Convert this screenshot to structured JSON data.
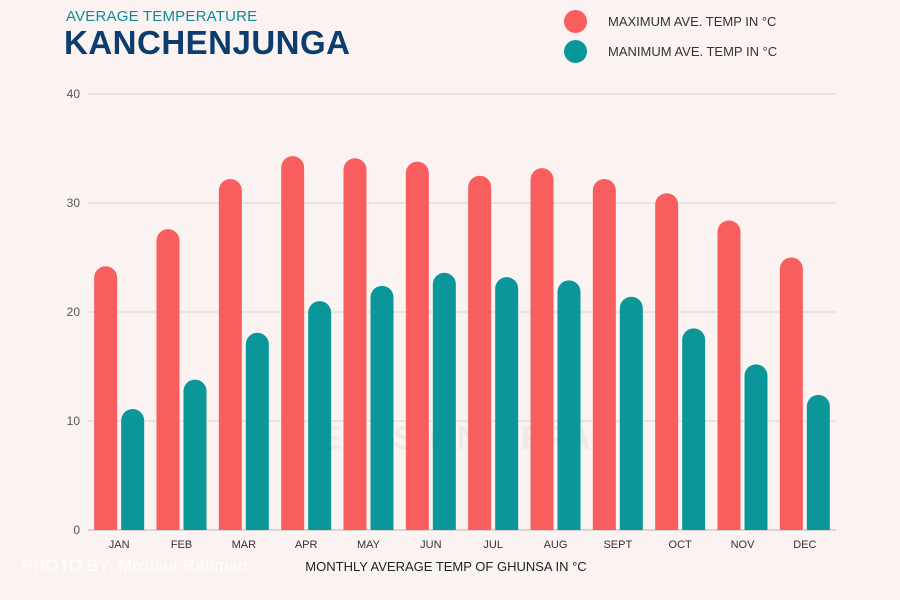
{
  "header": {
    "subtitle": "AVERAGE TEMPERATURE",
    "title": "KANCHENJUNGA"
  },
  "watermark": "EYES ON NEPAL",
  "credit": "PHOTO BY: Moshiur Rahman",
  "colors": {
    "max": "#f95e5f",
    "min": "#0b979a",
    "grid": "#d9d6d5",
    "axis": "#555555"
  },
  "chart_data": {
    "type": "bar",
    "categories": [
      "JAN",
      "FEB",
      "MAR",
      "APR",
      "MAY",
      "JUN",
      "JUL",
      "AUG",
      "SEPT",
      "OCT",
      "NOV",
      "DEC"
    ],
    "series": [
      {
        "name": "MAXIMUM AVE.  TEMP IN °C",
        "values": [
          24.2,
          27.6,
          32.2,
          34.3,
          34.1,
          33.8,
          32.5,
          33.2,
          32.2,
          30.9,
          28.4,
          25
        ]
      },
      {
        "name": "MANIMUM AVE.  TEMP IN °C",
        "values": [
          11.1,
          13.8,
          18.1,
          21,
          22.4,
          23.6,
          23.2,
          22.9,
          21.4,
          18.5,
          15.2,
          12.4
        ]
      }
    ],
    "xlabel": "MONTHLY AVERAGE TEMP OF GHUNSA  IN °C",
    "ylabel": "",
    "ylim": [
      0,
      40
    ],
    "yticks": [
      0,
      10,
      20,
      30,
      40
    ],
    "grid": true,
    "legend": "top-right"
  }
}
